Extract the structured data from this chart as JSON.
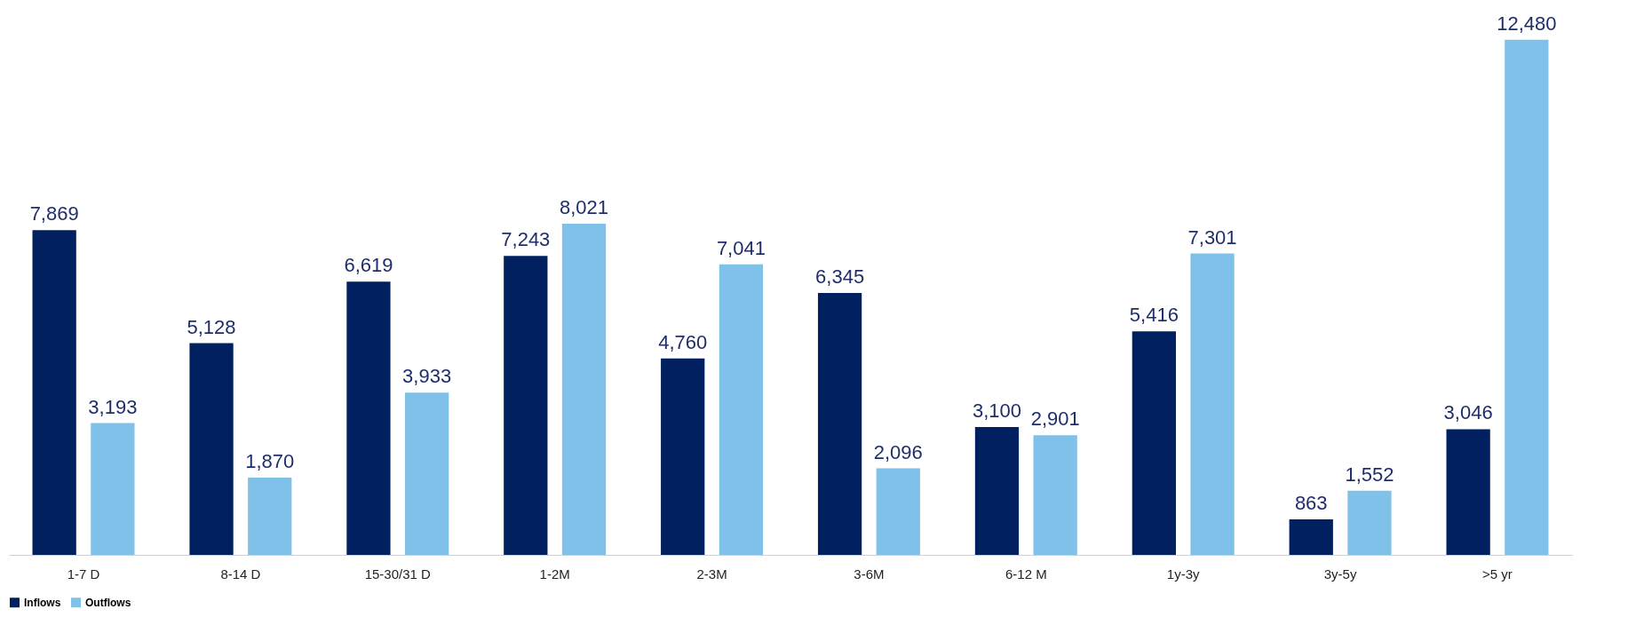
{
  "chart_data": {
    "type": "bar",
    "categories": [
      "1-7 D",
      "8-14 D",
      "15-30/31 D",
      "1-2M",
      "2-3M",
      "3-6M",
      "6-12 M",
      "1y-3y",
      "3y-5y",
      ">5 yr"
    ],
    "series": [
      {
        "name": "Inflows",
        "color": "#002060",
        "values": [
          7869,
          5128,
          6619,
          7243,
          4760,
          6345,
          3100,
          5416,
          863,
          3046
        ],
        "value_labels": [
          "7,869",
          "5,128",
          "6,619",
          "7,243",
          "4,760",
          "6,345",
          "3,100",
          "5,416",
          "863",
          "3,046"
        ]
      },
      {
        "name": "Outflows",
        "color": "#7fc1e8",
        "values": [
          3193,
          1870,
          3933,
          8021,
          7041,
          2096,
          2901,
          7301,
          1552,
          12480
        ],
        "value_labels": [
          "3,193",
          "1,870",
          "3,933",
          "8,021",
          "7,041",
          "2,096",
          "2,901",
          "7,301",
          "1,552",
          "12,480"
        ]
      }
    ],
    "legend": "bottom",
    "grid": false
  }
}
